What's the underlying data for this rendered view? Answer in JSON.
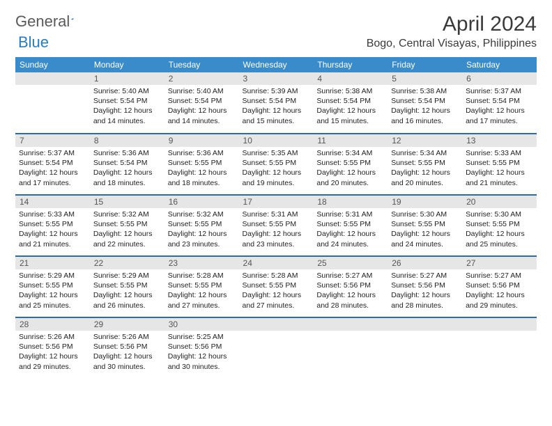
{
  "logo": {
    "general": "General",
    "blue": "Blue"
  },
  "title": "April 2024",
  "location": "Bogo, Central Visayas, Philippines",
  "colors": {
    "header_bg": "#3a8bc9",
    "header_text": "#ffffff",
    "daynum_bg": "#e6e6e6",
    "row_divider": "#2b6ca3",
    "logo_gray": "#5a5a5a",
    "logo_blue": "#2b7bbf",
    "text": "#222222"
  },
  "weekdays": [
    "Sunday",
    "Monday",
    "Tuesday",
    "Wednesday",
    "Thursday",
    "Friday",
    "Saturday"
  ],
  "weeks": [
    [
      null,
      {
        "n": "1",
        "sr": "5:40 AM",
        "ss": "5:54 PM",
        "dl": "12 hours and 14 minutes."
      },
      {
        "n": "2",
        "sr": "5:40 AM",
        "ss": "5:54 PM",
        "dl": "12 hours and 14 minutes."
      },
      {
        "n": "3",
        "sr": "5:39 AM",
        "ss": "5:54 PM",
        "dl": "12 hours and 15 minutes."
      },
      {
        "n": "4",
        "sr": "5:38 AM",
        "ss": "5:54 PM",
        "dl": "12 hours and 15 minutes."
      },
      {
        "n": "5",
        "sr": "5:38 AM",
        "ss": "5:54 PM",
        "dl": "12 hours and 16 minutes."
      },
      {
        "n": "6",
        "sr": "5:37 AM",
        "ss": "5:54 PM",
        "dl": "12 hours and 17 minutes."
      }
    ],
    [
      {
        "n": "7",
        "sr": "5:37 AM",
        "ss": "5:54 PM",
        "dl": "12 hours and 17 minutes."
      },
      {
        "n": "8",
        "sr": "5:36 AM",
        "ss": "5:54 PM",
        "dl": "12 hours and 18 minutes."
      },
      {
        "n": "9",
        "sr": "5:36 AM",
        "ss": "5:55 PM",
        "dl": "12 hours and 18 minutes."
      },
      {
        "n": "10",
        "sr": "5:35 AM",
        "ss": "5:55 PM",
        "dl": "12 hours and 19 minutes."
      },
      {
        "n": "11",
        "sr": "5:34 AM",
        "ss": "5:55 PM",
        "dl": "12 hours and 20 minutes."
      },
      {
        "n": "12",
        "sr": "5:34 AM",
        "ss": "5:55 PM",
        "dl": "12 hours and 20 minutes."
      },
      {
        "n": "13",
        "sr": "5:33 AM",
        "ss": "5:55 PM",
        "dl": "12 hours and 21 minutes."
      }
    ],
    [
      {
        "n": "14",
        "sr": "5:33 AM",
        "ss": "5:55 PM",
        "dl": "12 hours and 21 minutes."
      },
      {
        "n": "15",
        "sr": "5:32 AM",
        "ss": "5:55 PM",
        "dl": "12 hours and 22 minutes."
      },
      {
        "n": "16",
        "sr": "5:32 AM",
        "ss": "5:55 PM",
        "dl": "12 hours and 23 minutes."
      },
      {
        "n": "17",
        "sr": "5:31 AM",
        "ss": "5:55 PM",
        "dl": "12 hours and 23 minutes."
      },
      {
        "n": "18",
        "sr": "5:31 AM",
        "ss": "5:55 PM",
        "dl": "12 hours and 24 minutes."
      },
      {
        "n": "19",
        "sr": "5:30 AM",
        "ss": "5:55 PM",
        "dl": "12 hours and 24 minutes."
      },
      {
        "n": "20",
        "sr": "5:30 AM",
        "ss": "5:55 PM",
        "dl": "12 hours and 25 minutes."
      }
    ],
    [
      {
        "n": "21",
        "sr": "5:29 AM",
        "ss": "5:55 PM",
        "dl": "12 hours and 25 minutes."
      },
      {
        "n": "22",
        "sr": "5:29 AM",
        "ss": "5:55 PM",
        "dl": "12 hours and 26 minutes."
      },
      {
        "n": "23",
        "sr": "5:28 AM",
        "ss": "5:55 PM",
        "dl": "12 hours and 27 minutes."
      },
      {
        "n": "24",
        "sr": "5:28 AM",
        "ss": "5:55 PM",
        "dl": "12 hours and 27 minutes."
      },
      {
        "n": "25",
        "sr": "5:27 AM",
        "ss": "5:56 PM",
        "dl": "12 hours and 28 minutes."
      },
      {
        "n": "26",
        "sr": "5:27 AM",
        "ss": "5:56 PM",
        "dl": "12 hours and 28 minutes."
      },
      {
        "n": "27",
        "sr": "5:27 AM",
        "ss": "5:56 PM",
        "dl": "12 hours and 29 minutes."
      }
    ],
    [
      {
        "n": "28",
        "sr": "5:26 AM",
        "ss": "5:56 PM",
        "dl": "12 hours and 29 minutes."
      },
      {
        "n": "29",
        "sr": "5:26 AM",
        "ss": "5:56 PM",
        "dl": "12 hours and 30 minutes."
      },
      {
        "n": "30",
        "sr": "5:25 AM",
        "ss": "5:56 PM",
        "dl": "12 hours and 30 minutes."
      },
      null,
      null,
      null,
      null
    ]
  ],
  "labels": {
    "sunrise": "Sunrise:",
    "sunset": "Sunset:",
    "daylight": "Daylight:"
  }
}
